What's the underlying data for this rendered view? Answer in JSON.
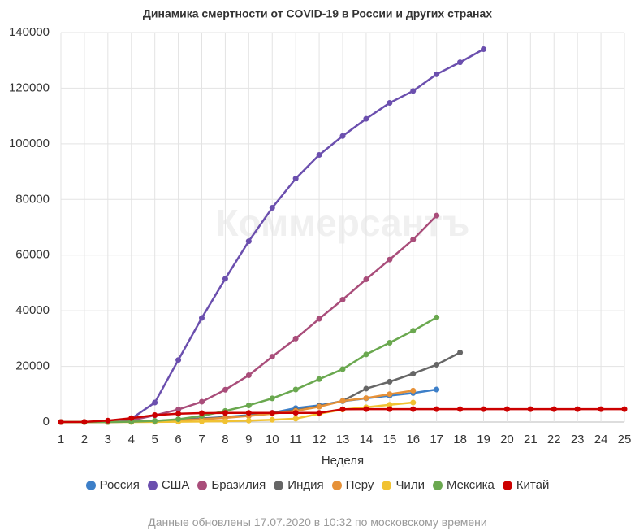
{
  "chart_data": {
    "type": "line",
    "title": "Динамика смертности от COVID-19 в России и других странах",
    "x_label": "Неделя",
    "watermark": "Коммерсантъ",
    "note": "Данные обновлены 17.07.2020 в 10:32 по московскому времени",
    "x": [
      1,
      2,
      3,
      4,
      5,
      6,
      7,
      8,
      9,
      10,
      11,
      12,
      13,
      14,
      15,
      16,
      17,
      18,
      19,
      20,
      21,
      22,
      23,
      24,
      25
    ],
    "xlim": [
      1,
      25
    ],
    "xticks": [
      1,
      2,
      3,
      4,
      5,
      6,
      7,
      8,
      9,
      10,
      11,
      12,
      13,
      14,
      15,
      16,
      17,
      18,
      19,
      20,
      21,
      22,
      23,
      24,
      25
    ],
    "ylim": [
      0,
      140000
    ],
    "yticks": [
      0,
      20000,
      40000,
      60000,
      80000,
      100000,
      120000,
      140000
    ],
    "grid": true,
    "series": [
      {
        "name": "Россия",
        "color": "#3d7fc8",
        "values": [
          0,
          0,
          0,
          100,
          400,
          800,
          1300,
          1800,
          2500,
          3300,
          5000,
          6000,
          7500,
          8500,
          9500,
          10400,
          11700,
          null,
          null,
          null,
          null,
          null,
          null,
          null,
          null
        ]
      },
      {
        "name": "США",
        "color": "#6b4fae",
        "values": [
          0,
          0,
          300,
          1200,
          7000,
          22300,
          37400,
          51500,
          65000,
          77000,
          87500,
          96000,
          102800,
          109000,
          114700,
          119000,
          125000,
          129300,
          134000,
          null,
          null,
          null,
          null,
          null,
          null
        ]
      },
      {
        "name": "Бразилия",
        "color": "#a94d7a",
        "values": [
          0,
          0,
          0,
          600,
          2400,
          4500,
          7300,
          11600,
          16800,
          23500,
          30000,
          37100,
          44000,
          51300,
          58400,
          65600,
          74200,
          null,
          null,
          null,
          null,
          null,
          null,
          null,
          null
        ]
      },
      {
        "name": "Индия",
        "color": "#666666",
        "values": [
          0,
          0,
          50,
          100,
          300,
          700,
          1200,
          1700,
          2300,
          3300,
          4200,
          5700,
          7600,
          12000,
          14500,
          17400,
          20600,
          25000,
          null,
          null,
          null,
          null,
          null,
          null,
          null
        ]
      },
      {
        "name": "Перу",
        "color": "#e69138",
        "values": [
          0,
          0,
          0,
          100,
          300,
          600,
          1000,
          1500,
          2200,
          3000,
          4000,
          5500,
          7600,
          8600,
          10000,
          11300,
          null,
          null,
          null,
          null,
          null,
          null,
          null,
          null,
          null
        ]
      },
      {
        "name": "Чили",
        "color": "#f1c232",
        "values": [
          0,
          0,
          0,
          0,
          50,
          100,
          200,
          300,
          500,
          800,
          1200,
          3000,
          4500,
          5300,
          6200,
          7000,
          null,
          null,
          null,
          null,
          null,
          null,
          null,
          null,
          null
        ]
      },
      {
        "name": "Мексика",
        "color": "#6aa84f",
        "values": [
          0,
          0,
          0,
          100,
          400,
          1000,
          2200,
          4000,
          6000,
          8500,
          11700,
          15400,
          19000,
          24300,
          28500,
          32800,
          37600,
          null,
          null,
          null,
          null,
          null,
          null,
          null,
          null
        ]
      },
      {
        "name": "Китай",
        "color": "#cc0000",
        "values": [
          0,
          50,
          500,
          1400,
          2500,
          3000,
          3200,
          3300,
          3300,
          3300,
          3300,
          3300,
          4600,
          4630,
          4630,
          4630,
          4634,
          4634,
          4634,
          4634,
          4634,
          4634,
          4634,
          4634,
          4634
        ]
      }
    ]
  }
}
